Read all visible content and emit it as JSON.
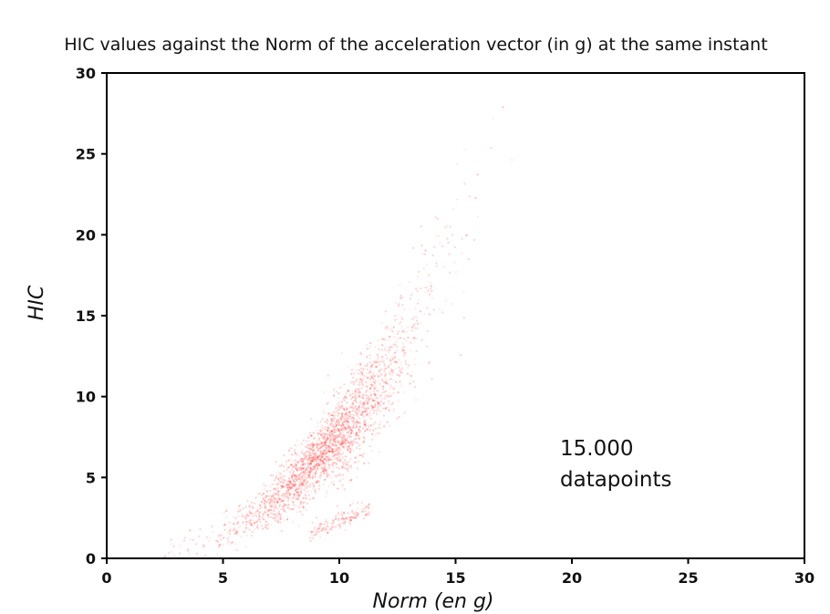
{
  "chart_data": {
    "type": "scatter",
    "title": "HIC values against the Norm of the acceleration vector (in g) at the same instant",
    "xlabel": "Norm   (en g)",
    "ylabel": "HIC",
    "xlim": [
      0,
      30
    ],
    "ylim": [
      0,
      30
    ],
    "xticks": [
      "0",
      "5",
      "10",
      "15",
      "20",
      "25",
      "30"
    ],
    "yticks": [
      "0",
      "5",
      "10",
      "15",
      "20",
      "25",
      "30"
    ],
    "xtick_values": [
      0,
      5,
      10,
      15,
      20,
      25,
      30
    ],
    "ytick_values": [
      0,
      5,
      10,
      15,
      20,
      25,
      30
    ],
    "annotation": [
      "15.000",
      "datapoints"
    ],
    "point_count": 15000,
    "point_color": "#ff0000",
    "grid": false,
    "density_profile": {
      "description": "approximate HIC trend by Norm",
      "norm": [
        3,
        5,
        7,
        8,
        9,
        10,
        11,
        12,
        13,
        14,
        15,
        16,
        17
      ],
      "hic": [
        0.4,
        1.3,
        3.2,
        4.6,
        6.0,
        7.6,
        9.3,
        11.3,
        13.7,
        16.5,
        19.6,
        23.0,
        27.0
      ]
    }
  }
}
